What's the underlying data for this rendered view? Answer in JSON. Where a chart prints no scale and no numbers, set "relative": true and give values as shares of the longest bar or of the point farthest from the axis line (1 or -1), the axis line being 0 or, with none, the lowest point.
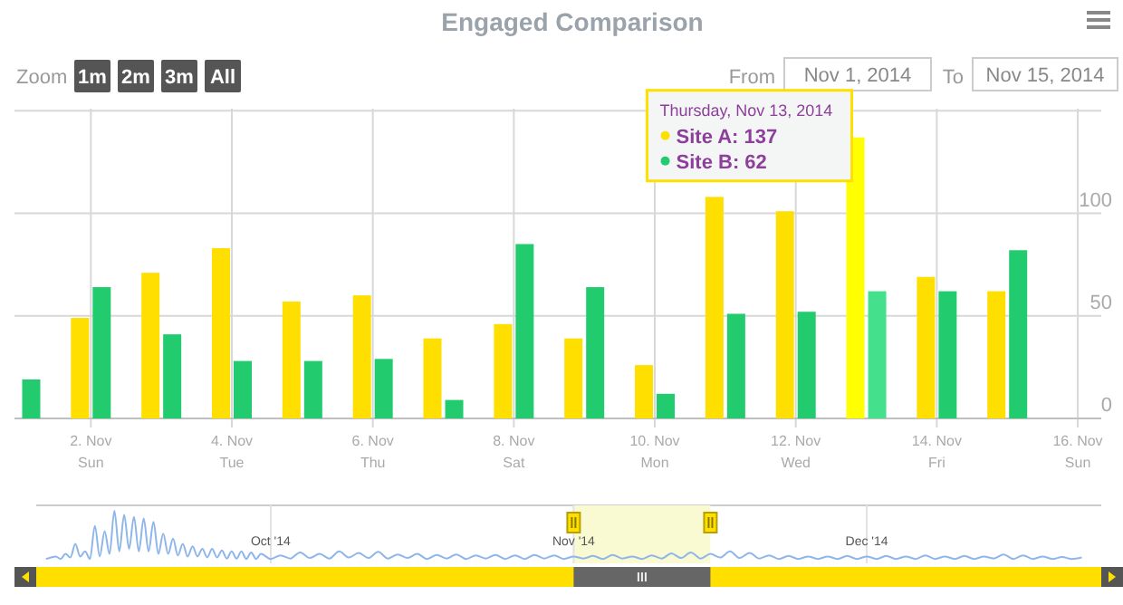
{
  "chart_data": [
    {
      "type": "bar",
      "title": "Engaged Comparison",
      "x": [
        "2014-11-01",
        "2014-11-02",
        "2014-11-03",
        "2014-11-04",
        "2014-11-05",
        "2014-11-06",
        "2014-11-07",
        "2014-11-08",
        "2014-11-09",
        "2014-11-10",
        "2014-11-11",
        "2014-11-12",
        "2014-11-13",
        "2014-11-14",
        "2014-11-15"
      ],
      "series": [
        {
          "color": "#ffdf00",
          "colors": [
            null,
            "#ffdf00",
            "#ffdf00",
            "#ffdf00",
            "#ffdf00",
            "#ffdf00",
            "#ffdf00",
            "#ffdf00",
            "#ffdf00",
            "#ffdf00",
            "#ffdf00",
            "#ffdf00",
            "#ffff00",
            "#ffdf00",
            "#ffdf00"
          ],
          "values": [
            null,
            49,
            71,
            83,
            57,
            60,
            39,
            46,
            39,
            26,
            108,
            101,
            137,
            69,
            62
          ]
        },
        {
          "color": "#22cc6e",
          "colors": [
            "#22cc6e",
            "#22cc6e",
            "#22cc6e",
            "#22cc6e",
            "#22cc6e",
            "#22cc6e",
            "#22cc6e",
            "#22cc6e",
            "#22cc6e",
            "#22cc6e",
            "#22cc6e",
            "#22cc6e",
            "#44e08c",
            "#22cc6e",
            "#22cc6e"
          ],
          "values": [
            19,
            64,
            41,
            28,
            28,
            29,
            9,
            85,
            64,
            12,
            51,
            52,
            62,
            62,
            82
          ]
        }
      ],
      "xlim": [
        "2014-10-31T22:00",
        "2014-11-16T08:00"
      ],
      "xticks": [
        {
          "value": "2014-11-02",
          "label": "2. Nov\nSun"
        },
        {
          "value": "2014-11-04",
          "label": "4. Nov\nTue"
        },
        {
          "value": "2014-11-06",
          "label": "6. Nov\nThu"
        },
        {
          "value": "2014-11-08",
          "label": "8. Nov\nSat"
        },
        {
          "value": "2014-11-10",
          "label": "10. Nov\nMon"
        },
        {
          "value": "2014-11-12",
          "label": "12. Nov\nWed"
        },
        {
          "value": "2014-11-14",
          "label": "14. Nov\nFri"
        },
        {
          "value": "2014-11-16",
          "label": "16. Nov\nSun"
        }
      ],
      "ylim": [
        0,
        151
      ],
      "yticks": [
        0,
        50,
        100,
        {
          "value": 150,
          "label": null
        }
      ],
      "grid": true,
      "annotations": [
        "Zoom",
        "1m",
        "2m",
        "3m",
        "All",
        "From",
        "Nov 1, 2014",
        "To",
        "Nov 15, 2014",
        "Site A: 137",
        "Site B: 62",
        {
          "text": "Thursday, Nov 13, 2014",
          "x": "2014-11-13",
          "y": 137
        }
      ]
    },
    {
      "type": "line",
      "relative": true,
      "grid": "x",
      "xlim": [
        "2014-09-07",
        "2014-12-25"
      ],
      "xticks": [
        {
          "value": "2014-10-01",
          "label": "Oct '14"
        },
        {
          "value": "2014-11-01",
          "label": "Nov '14"
        },
        {
          "value": "2014-12-01",
          "label": "Dec '14"
        }
      ],
      "bands": [
        {
          "axis": "x",
          "from": "2014-11-01",
          "to": "2014-11-15",
          "color": "#fafad2"
        }
      ],
      "series": [
        {
          "color": "#8fb6ea",
          "x": [
            "2014-09-08",
            "2014-09-08T12:00",
            "2014-09-09",
            "2014-09-09T12:00",
            "2014-09-10",
            "2014-09-10T12:00",
            "2014-09-11",
            "2014-09-11T12:00",
            "2014-09-12",
            "2014-09-12T12:00",
            "2014-09-13",
            "2014-09-13T12:00",
            "2014-09-14",
            "2014-09-14T12:00",
            "2014-09-15",
            "2014-09-15T12:00",
            "2014-09-16",
            "2014-09-16T12:00",
            "2014-09-17",
            "2014-09-17T12:00",
            "2014-09-18",
            "2014-09-18T12:00",
            "2014-09-19",
            "2014-09-19T12:00",
            "2014-09-20",
            "2014-09-20T12:00",
            "2014-09-21",
            "2014-09-21T12:00",
            "2014-09-22",
            "2014-09-22T12:00",
            "2014-09-23",
            "2014-09-23T12:00",
            "2014-09-24",
            "2014-09-24T12:00",
            "2014-09-25",
            "2014-09-25T12:00",
            "2014-09-26",
            "2014-09-26T12:00",
            "2014-09-27",
            "2014-09-27T12:00",
            "2014-09-28",
            "2014-09-28T12:00",
            "2014-09-29",
            "2014-09-29T12:00",
            "2014-09-30",
            "2014-10-01",
            "2014-10-02",
            "2014-10-03",
            "2014-10-04",
            "2014-10-05",
            "2014-10-06",
            "2014-10-07",
            "2014-10-08",
            "2014-10-09",
            "2014-10-10",
            "2014-10-11",
            "2014-10-12",
            "2014-10-13",
            "2014-10-14",
            "2014-10-15",
            "2014-10-16",
            "2014-10-17",
            "2014-10-18",
            "2014-10-19",
            "2014-10-20",
            "2014-10-21",
            "2014-10-22",
            "2014-10-23",
            "2014-10-24",
            "2014-10-25",
            "2014-10-26",
            "2014-10-27",
            "2014-10-28",
            "2014-10-29",
            "2014-10-30",
            "2014-10-31",
            "2014-11-01",
            "2014-11-02",
            "2014-11-03",
            "2014-11-04",
            "2014-11-05",
            "2014-11-06",
            "2014-11-07",
            "2014-11-08",
            "2014-11-09",
            "2014-11-10",
            "2014-11-11",
            "2014-11-12",
            "2014-11-13",
            "2014-11-14",
            "2014-11-15",
            "2014-11-16",
            "2014-11-17",
            "2014-11-18",
            "2014-11-19",
            "2014-11-20",
            "2014-11-21",
            "2014-11-22",
            "2014-11-23",
            "2014-11-24",
            "2014-11-25",
            "2014-11-26",
            "2014-11-27",
            "2014-11-28",
            "2014-11-29",
            "2014-11-30",
            "2014-12-01",
            "2014-12-02",
            "2014-12-03",
            "2014-12-04",
            "2014-12-05",
            "2014-12-06",
            "2014-12-07",
            "2014-12-08",
            "2014-12-09",
            "2014-12-10",
            "2014-12-11",
            "2014-12-12",
            "2014-12-13",
            "2014-12-14",
            "2014-12-15",
            "2014-12-16",
            "2014-12-17",
            "2014-12-18",
            "2014-12-19",
            "2014-12-20",
            "2014-12-21",
            "2014-12-22",
            "2014-12-23"
          ],
          "values": [
            0.05,
            0.08,
            0.1,
            0.05,
            0.15,
            0.08,
            0.35,
            0.1,
            0.2,
            0.05,
            0.7,
            0.1,
            0.6,
            0.15,
            1,
            0.2,
            0.92,
            0.25,
            0.88,
            0.2,
            0.85,
            0.2,
            0.78,
            0.15,
            0.55,
            0.15,
            0.45,
            0.12,
            0.35,
            0.1,
            0.3,
            0.1,
            0.25,
            0.08,
            0.25,
            0.08,
            0.22,
            0.06,
            0.2,
            0.06,
            0.2,
            0.05,
            0.18,
            0.05,
            0.15,
            0.05,
            0.12,
            0.06,
            0.18,
            0.07,
            0.15,
            0.06,
            0.2,
            0.08,
            0.17,
            0.07,
            0.19,
            0.06,
            0.14,
            0.07,
            0.15,
            0.05,
            0.13,
            0.06,
            0.14,
            0.05,
            0.12,
            0.06,
            0.13,
            0.05,
            0.12,
            0.05,
            0.13,
            0.06,
            0.12,
            0.05,
            0.1,
            0.06,
            0.11,
            0.05,
            0.13,
            0.06,
            0.1,
            0.05,
            0.12,
            0.06,
            0.16,
            0.07,
            0.18,
            0.06,
            0.15,
            0.08,
            0.2,
            0.07,
            0.17,
            0.06,
            0.12,
            0.05,
            0.11,
            0.05,
            0.1,
            0.05,
            0.1,
            0.05,
            0.11,
            0.05,
            0.1,
            0.05,
            0.11,
            0.05,
            0.1,
            0.05,
            0.12,
            0.05,
            0.1,
            0.05,
            0.11,
            0.05,
            0.1,
            0.06,
            0.14,
            0.05,
            0.12,
            0.05,
            0.1,
            0.05,
            0.09,
            0.05,
            0.08
          ]
        }
      ]
    }
  ]
}
